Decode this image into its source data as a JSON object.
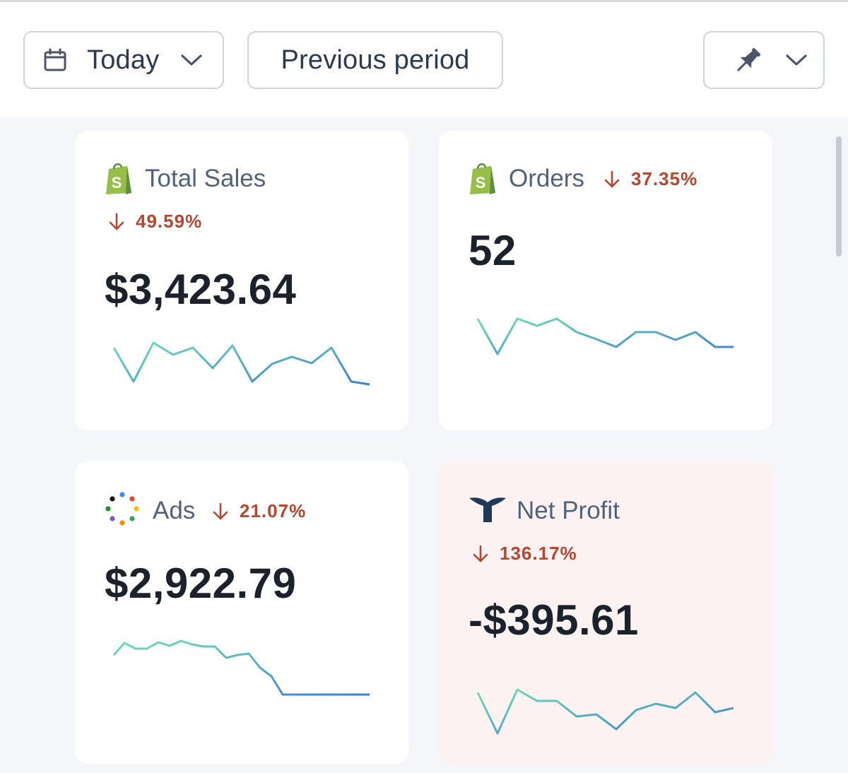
{
  "toolbar": {
    "date_range_label": "Today",
    "compare_label": "Previous period",
    "date_icon": "calendar-icon",
    "pin_icon": "pin-icon"
  },
  "colors": {
    "negative": "#b8452f",
    "spark_start": "#6ee0b3",
    "spark_end": "#3c7fd1",
    "negative_card_bg": "#fbf2f1"
  },
  "metrics": [
    {
      "id": "total-sales",
      "title": "Total Sales",
      "source_icon": "shopify-icon",
      "change": "49.59%",
      "direction": "down",
      "value": "$3,423.64"
    },
    {
      "id": "orders",
      "title": "Orders",
      "source_icon": "shopify-icon",
      "change": "37.35%",
      "direction": "down",
      "value": "52"
    },
    {
      "id": "ads",
      "title": "Ads",
      "source_icon": "ads-dots-icon",
      "change": "21.07%",
      "direction": "down",
      "value": "$2,922.79"
    },
    {
      "id": "net-profit",
      "title": "Net Profit",
      "source_icon": "whale-tail-icon",
      "change": "136.17%",
      "direction": "down",
      "value": "-$395.61"
    }
  ]
}
